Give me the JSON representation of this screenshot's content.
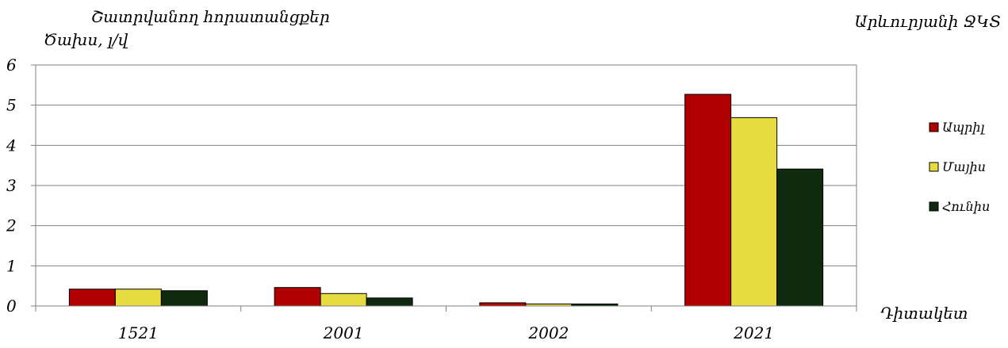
{
  "chart_data": {
    "type": "bar",
    "title": "Շատրվանող հորատանցքեր",
    "subtitle": "Արևուրյանի ՋԿՏ",
    "ylabel": "Ծախս, լ/վ",
    "xlabel": "Դիտակետ",
    "categories": [
      "1521",
      "2001",
      "2002",
      "2021"
    ],
    "y_ticks": [
      "0",
      "1",
      "2",
      "3",
      "4",
      "5",
      "6"
    ],
    "ylim": [
      0,
      6
    ],
    "grid": true,
    "legend_position": "right",
    "series": [
      {
        "name": "Ապրիլ",
        "color": "#b00000",
        "values": [
          0.42,
          0.46,
          0.08,
          5.27
        ]
      },
      {
        "name": "Մայիս",
        "color": "#e6dc40",
        "values": [
          0.42,
          0.31,
          0.05,
          4.69
        ]
      },
      {
        "name": "Հունիս",
        "color": "#0f2a0f",
        "values": [
          0.38,
          0.2,
          0.05,
          3.41
        ]
      }
    ]
  }
}
